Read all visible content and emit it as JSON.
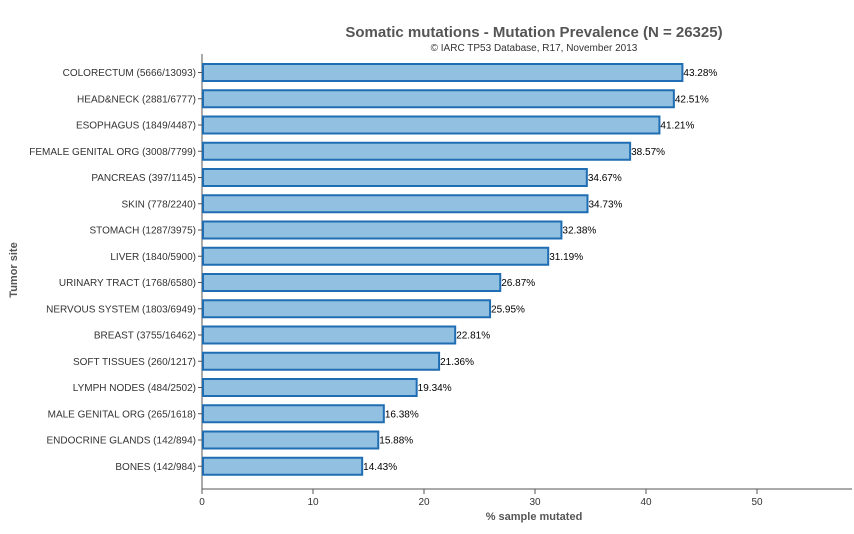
{
  "chart_data": {
    "type": "bar",
    "orientation": "horizontal",
    "title": "Somatic mutations - Mutation Prevalence (N = 26325)",
    "subtitle": "© IARC TP53 Database, R17, November 2013",
    "xlabel": "% sample mutated",
    "ylabel": "Tumor site",
    "xlim": [
      0,
      58
    ],
    "xticks": [
      0,
      10,
      20,
      30,
      40,
      50
    ],
    "grid": false,
    "legend": "none",
    "bar_fill": "#92c0e0",
    "bar_stroke": "#1f6db3",
    "categories": [
      "COLORECTUM (5666/13093)",
      "HEAD&NECK (2881/6777)",
      "ESOPHAGUS (1849/4487)",
      "FEMALE GENITAL ORG (3008/7799)",
      "PANCREAS (397/1145)",
      "SKIN (778/2240)",
      "STOMACH (1287/3975)",
      "LIVER (1840/5900)",
      "URINARY TRACT (1768/6580)",
      "NERVOUS SYSTEM (1803/6949)",
      "BREAST (3755/16462)",
      "SOFT TISSUES (260/1217)",
      "LYMPH NODES (484/2502)",
      "MALE GENITAL ORG (265/1618)",
      "ENDOCRINE GLANDS (142/894)",
      "BONES (142/984)"
    ],
    "values": [
      43.28,
      42.51,
      41.21,
      38.57,
      34.67,
      34.73,
      32.38,
      31.19,
      26.87,
      25.95,
      22.81,
      21.36,
      19.34,
      16.38,
      15.88,
      14.43
    ],
    "value_labels": [
      "43.28%",
      "42.51%",
      "41.21%",
      "38.57%",
      "34.67%",
      "34.73%",
      "32.38%",
      "31.19%",
      "26.87%",
      "25.95%",
      "22.81%",
      "21.36%",
      "19.34%",
      "16.38%",
      "15.88%",
      "14.43%"
    ]
  }
}
